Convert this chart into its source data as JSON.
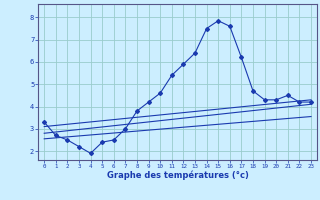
{
  "xlabel": "Graphe des températures (°c)",
  "xlim": [
    -0.5,
    23.5
  ],
  "ylim": [
    1.6,
    8.6
  ],
  "yticks": [
    2,
    3,
    4,
    5,
    6,
    7,
    8
  ],
  "xticks": [
    0,
    1,
    2,
    3,
    4,
    5,
    6,
    7,
    8,
    9,
    10,
    11,
    12,
    13,
    14,
    15,
    16,
    17,
    18,
    19,
    20,
    21,
    22,
    23
  ],
  "bg_color": "#cceeff",
  "line_color": "#1a3aaf",
  "grid_color": "#99cccc",
  "main_curve_x": [
    0,
    1,
    2,
    3,
    4,
    5,
    6,
    7,
    8,
    9,
    10,
    11,
    12,
    13,
    14,
    15,
    16,
    17,
    18,
    19,
    20,
    21,
    22,
    23
  ],
  "main_curve_y": [
    3.3,
    2.7,
    2.5,
    2.2,
    1.9,
    2.4,
    2.5,
    3.0,
    3.8,
    4.2,
    4.6,
    5.4,
    5.9,
    6.4,
    7.5,
    7.85,
    7.6,
    6.2,
    4.7,
    4.3,
    4.3,
    4.5,
    4.2,
    4.2
  ],
  "trend1_x": [
    0,
    23
  ],
  "trend1_y": [
    2.8,
    4.1
  ],
  "trend2_x": [
    0,
    23
  ],
  "trend2_y": [
    2.55,
    3.55
  ],
  "trend3_x": [
    0,
    23
  ],
  "trend3_y": [
    3.1,
    4.3
  ]
}
